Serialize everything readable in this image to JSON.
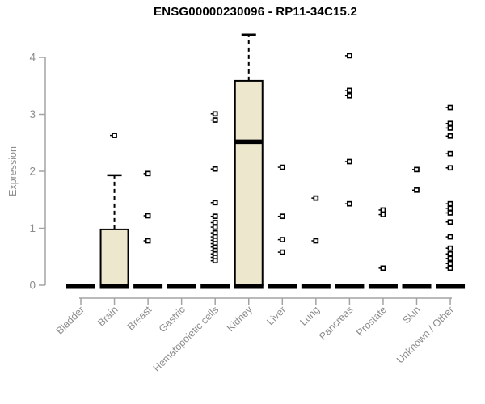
{
  "title": "ENSG00000230096 - RP11-34C15.2",
  "chart_data": {
    "type": "boxplot",
    "title": "ENSG00000230096 - RP11-34C15.2",
    "ylabel": "Expression",
    "xlabel": "",
    "ylim": [
      0,
      4.45
    ],
    "yticks": [
      0,
      1,
      2,
      3,
      4
    ],
    "grid": false,
    "legend": "none",
    "point_style": "open-square",
    "colors": {
      "box_fill": "#ece7cd",
      "box_stroke": "#000000",
      "median": "#000000",
      "axis_line": "#a3a3a3",
      "tick_text": "#8c8c8c",
      "title_text": "#000000",
      "background": "#ffffff"
    },
    "categories": [
      "Bladder",
      "Brain",
      "Breast",
      "Gastric",
      "Hematopoietic cells",
      "Kidney",
      "Liver",
      "Lung",
      "Pancreas",
      "Prostate",
      "Skin",
      "Unknown / Other"
    ],
    "series": [
      {
        "category": "Bladder",
        "min": 0,
        "q1": 0,
        "median": 0,
        "q3": 0,
        "max": 0,
        "outliers": []
      },
      {
        "category": "Brain",
        "min": 0,
        "q1": 0,
        "median": 0,
        "q3": 0.98,
        "max": 1.93,
        "outliers": [
          2.63
        ]
      },
      {
        "category": "Breast",
        "min": 0,
        "q1": 0,
        "median": 0,
        "q3": 0,
        "max": 0,
        "outliers": [
          1.96,
          1.22,
          0.78
        ]
      },
      {
        "category": "Gastric",
        "min": 0,
        "q1": 0,
        "median": 0,
        "q3": 0,
        "max": 0,
        "outliers": []
      },
      {
        "category": "Hematopoietic cells",
        "min": 0,
        "q1": 0,
        "median": 0,
        "q3": 0,
        "max": 0,
        "outliers": [
          3.01,
          2.9,
          2.04,
          1.45,
          1.21,
          1.1,
          1.02,
          0.92,
          0.85,
          0.79,
          0.73,
          0.67,
          0.61,
          0.55,
          0.49,
          0.43
        ]
      },
      {
        "category": "Kidney",
        "min": 0,
        "q1": 0,
        "median": 2.52,
        "q3": 3.59,
        "max": 4.4,
        "outliers": []
      },
      {
        "category": "Liver",
        "min": 0,
        "q1": 0,
        "median": 0,
        "q3": 0,
        "max": 0,
        "outliers": [
          2.07,
          1.21,
          0.8,
          0.58
        ]
      },
      {
        "category": "Lung",
        "min": 0,
        "q1": 0,
        "median": 0,
        "q3": 0,
        "max": 0,
        "outliers": [
          1.53,
          0.78
        ]
      },
      {
        "category": "Pancreas",
        "min": 0,
        "q1": 0,
        "median": 0,
        "q3": 0,
        "max": 0,
        "outliers": [
          4.03,
          3.42,
          3.33,
          2.17,
          1.43
        ]
      },
      {
        "category": "Prostate",
        "min": 0,
        "q1": 0,
        "median": 0,
        "q3": 0,
        "max": 0,
        "outliers": [
          1.32,
          1.24,
          0.3
        ]
      },
      {
        "category": "Skin",
        "min": 0,
        "q1": 0,
        "median": 0,
        "q3": 0,
        "max": 0,
        "outliers": [
          2.03,
          1.67
        ]
      },
      {
        "category": "Unknown / Other",
        "min": 0,
        "q1": 0,
        "median": 0,
        "q3": 0,
        "max": 0,
        "outliers": [
          3.12,
          2.84,
          2.76,
          2.62,
          2.31,
          2.06,
          1.43,
          1.35,
          1.27,
          1.11,
          0.85,
          0.65,
          0.55,
          0.47,
          0.38,
          0.3
        ]
      }
    ]
  }
}
